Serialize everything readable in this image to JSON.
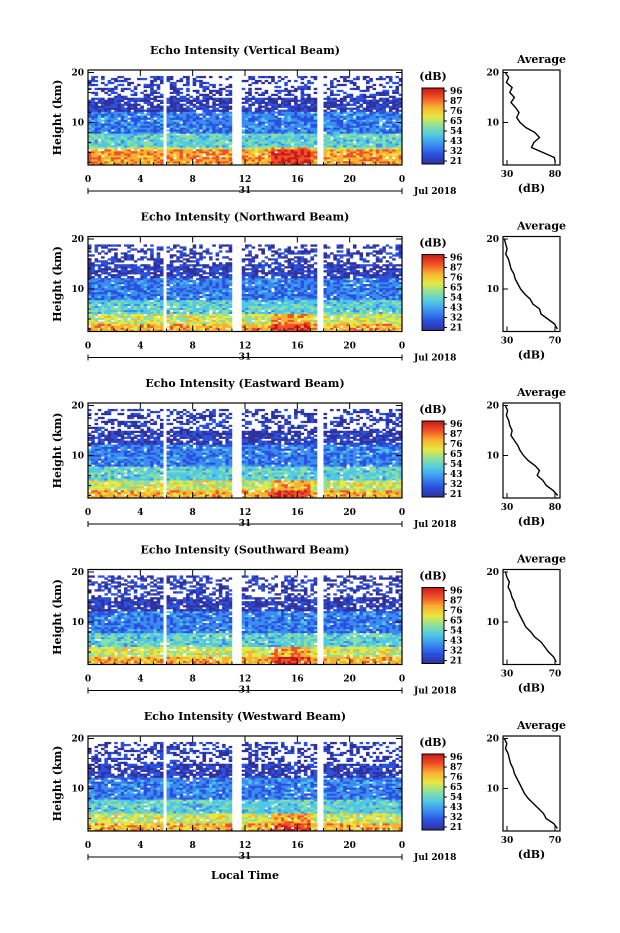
{
  "xlabel": "Local Time",
  "x_ticks": [
    "0",
    "4",
    "8",
    "12",
    "16",
    "20",
    "0"
  ],
  "date_label": "31",
  "month_label": "Jul 2018",
  "ylabel": "Height (km)",
  "y_ticks": [
    "20",
    "10"
  ],
  "colorbar_unit": "(dB)",
  "avg_title": "Average",
  "avg_xlabel": "(dB)",
  "colors": {
    "scale": [
      "#30309a",
      "#2a50e0",
      "#3b8cf0",
      "#4fc8e8",
      "#8ae0a0",
      "#e8e840",
      "#f8b030",
      "#f05028",
      "#c81818"
    ]
  },
  "chart_data": [
    {
      "type": "heatmap",
      "title": "Echo Intensity (Vertical Beam)",
      "xlabel": "Local Time",
      "ylabel": "Height (km)",
      "xlim": [
        0,
        24
      ],
      "ylim": [
        1.5,
        20.5
      ],
      "colorbar": {
        "label": "(dB)",
        "ticks": [
          "96",
          "87",
          "76",
          "65",
          "54",
          "43",
          "32",
          "21"
        ],
        "range": [
          21,
          96
        ]
      },
      "gaps_hours": [
        [
          5.8,
          6.1
        ],
        [
          10.9,
          11.8
        ],
        [
          17.5,
          17.9
        ]
      ],
      "top_of_echo_km": 19.5,
      "average_profile": {
        "title": "Average",
        "xlabel": "(dB)",
        "x_ticks": [
          "30",
          "80"
        ],
        "xlim": [
          30,
          80
        ],
        "y_ticks": [
          "20",
          "10"
        ],
        "ylim": [
          1.5,
          20.5
        ],
        "height_km": [
          20,
          19,
          18,
          17,
          16,
          15,
          14,
          13,
          12,
          11,
          10,
          9,
          8,
          7,
          6,
          5,
          4,
          3,
          2
        ],
        "value_db": [
          32,
          35,
          33,
          38,
          36,
          40,
          37,
          41,
          44,
          42,
          45,
          50,
          58,
          62,
          57,
          55,
          65,
          75,
          76
        ]
      }
    },
    {
      "type": "heatmap",
      "title": "Echo Intensity (Northward Beam)",
      "xlabel": "Local Time",
      "ylabel": "Height (km)",
      "xlim": [
        0,
        24
      ],
      "ylim": [
        1.5,
        20.5
      ],
      "colorbar": {
        "label": "(dB)",
        "ticks": [
          "96",
          "87",
          "76",
          "65",
          "54",
          "43",
          "32",
          "21"
        ],
        "range": [
          21,
          96
        ]
      },
      "gaps_hours": [
        [
          5.8,
          6.1
        ],
        [
          10.9,
          11.8
        ],
        [
          17.5,
          17.9
        ]
      ],
      "top_of_echo_km": 19.0,
      "average_profile": {
        "title": "Average",
        "xlabel": "(dB)",
        "x_ticks": [
          "30",
          "70"
        ],
        "xlim": [
          30,
          72
        ],
        "y_ticks": [
          "20",
          "10"
        ],
        "ylim": [
          1.5,
          20.5
        ],
        "height_km": [
          20,
          19,
          18,
          17,
          16,
          15,
          14,
          13,
          12,
          11,
          10,
          9,
          8,
          7,
          6,
          5,
          4,
          3,
          2
        ],
        "value_db": [
          31,
          32,
          33,
          32,
          34,
          35,
          36,
          38,
          39,
          41,
          43,
          46,
          50,
          52,
          57,
          58,
          63,
          68,
          70
        ]
      }
    },
    {
      "type": "heatmap",
      "title": "Echo Intensity (Eastward Beam)",
      "xlabel": "Local Time",
      "ylabel": "Height (km)",
      "xlim": [
        0,
        24
      ],
      "ylim": [
        1.5,
        20.5
      ],
      "colorbar": {
        "label": "(dB)",
        "ticks": [
          "96",
          "87",
          "76",
          "65",
          "54",
          "43",
          "32",
          "21"
        ],
        "range": [
          21,
          96
        ]
      },
      "gaps_hours": [
        [
          5.8,
          6.1
        ],
        [
          10.9,
          11.8
        ],
        [
          17.5,
          17.9
        ]
      ],
      "top_of_echo_km": 19.2,
      "average_profile": {
        "title": "Average",
        "xlabel": "(dB)",
        "x_ticks": [
          "30",
          "80"
        ],
        "xlim": [
          30,
          80
        ],
        "y_ticks": [
          "20",
          "10"
        ],
        "ylim": [
          1.5,
          20.5
        ],
        "height_km": [
          20,
          19,
          18,
          17,
          16,
          15,
          14,
          13,
          12,
          11,
          10,
          9,
          8,
          7,
          6,
          5,
          4,
          3,
          2
        ],
        "value_db": [
          32,
          34,
          33,
          35,
          36,
          38,
          37,
          40,
          43,
          45,
          48,
          52,
          58,
          62,
          60,
          65,
          68,
          74,
          78
        ]
      }
    },
    {
      "type": "heatmap",
      "title": "Echo Intensity (Southward Beam)",
      "xlabel": "Local Time",
      "ylabel": "Height (km)",
      "xlim": [
        0,
        24
      ],
      "ylim": [
        1.5,
        20.5
      ],
      "colorbar": {
        "label": "(dB)",
        "ticks": [
          "96",
          "87",
          "76",
          "65",
          "54",
          "43",
          "32",
          "21"
        ],
        "range": [
          21,
          96
        ]
      },
      "gaps_hours": [
        [
          5.8,
          6.1
        ],
        [
          10.9,
          11.8
        ],
        [
          17.5,
          17.9
        ]
      ],
      "top_of_echo_km": 19.2,
      "average_profile": {
        "title": "Average",
        "xlabel": "(dB)",
        "x_ticks": [
          "30",
          "70"
        ],
        "xlim": [
          30,
          75
        ],
        "y_ticks": [
          "20",
          "10"
        ],
        "ylim": [
          1.5,
          20.5
        ],
        "height_km": [
          20,
          19,
          18,
          17,
          16,
          15,
          14,
          13,
          12,
          11,
          10,
          9,
          8,
          7,
          6,
          5,
          4,
          3,
          2
        ],
        "value_db": [
          32,
          33,
          35,
          34,
          36,
          37,
          39,
          40,
          42,
          44,
          46,
          48,
          52,
          55,
          60,
          63,
          66,
          70,
          72
        ]
      }
    },
    {
      "type": "heatmap",
      "title": "Echo Intensity (Westward Beam)",
      "xlabel": "Local Time",
      "ylabel": "Height (km)",
      "xlim": [
        0,
        24
      ],
      "ylim": [
        1.5,
        20.5
      ],
      "colorbar": {
        "label": "(dB)",
        "ticks": [
          "96",
          "87",
          "76",
          "65",
          "54",
          "43",
          "32",
          "21"
        ],
        "range": [
          21,
          96
        ]
      },
      "gaps_hours": [
        [
          5.8,
          6.1
        ],
        [
          10.9,
          11.8
        ],
        [
          17.5,
          17.9
        ]
      ],
      "top_of_echo_km": 19.3,
      "average_profile": {
        "title": "Average",
        "xlabel": "(dB)",
        "x_ticks": [
          "30",
          "70"
        ],
        "xlim": [
          30,
          75
        ],
        "y_ticks": [
          "20",
          "10"
        ],
        "ylim": [
          1.5,
          20.5
        ],
        "height_km": [
          20,
          19,
          18,
          17,
          16,
          15,
          14,
          13,
          12,
          11,
          10,
          9,
          8,
          7,
          6,
          5,
          4,
          3,
          2
        ],
        "value_db": [
          31,
          33,
          32,
          34,
          35,
          36,
          38,
          39,
          41,
          43,
          45,
          47,
          50,
          54,
          58,
          62,
          64,
          70,
          73
        ]
      }
    }
  ]
}
